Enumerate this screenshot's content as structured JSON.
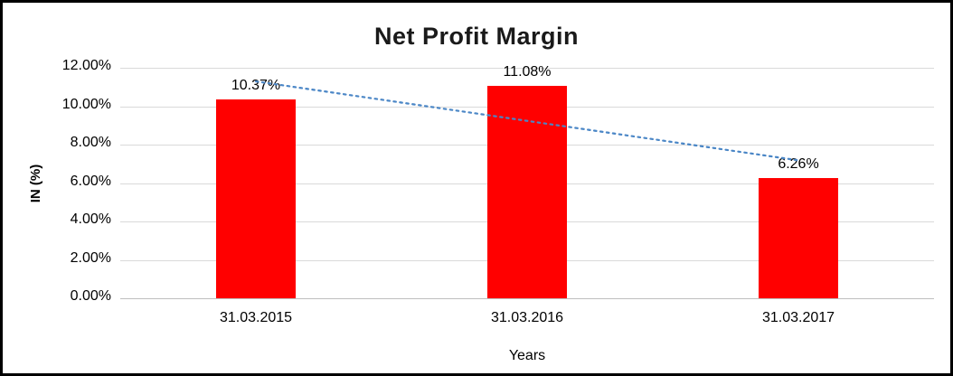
{
  "chart_data": {
    "type": "bar",
    "title": "Net Profit Margin",
    "xlabel": "Years",
    "ylabel": "IN (%)",
    "categories": [
      "31.03.2015",
      "31.03.2016",
      "31.03.2017"
    ],
    "values": [
      10.37,
      11.08,
      6.26
    ],
    "value_labels": [
      "10.37%",
      "11.08%",
      "6.26%"
    ],
    "ylim": [
      0,
      12
    ],
    "ytick_step": 2,
    "ytick_labels": [
      "0.00%",
      "2.00%",
      "4.00%",
      "6.00%",
      "8.00%",
      "10.00%",
      "12.00%"
    ],
    "grid": true,
    "legend": "none",
    "bar_color": "#ff0000",
    "trendline": {
      "show": true,
      "style": "dotted",
      "color": "#4a86c6"
    }
  }
}
